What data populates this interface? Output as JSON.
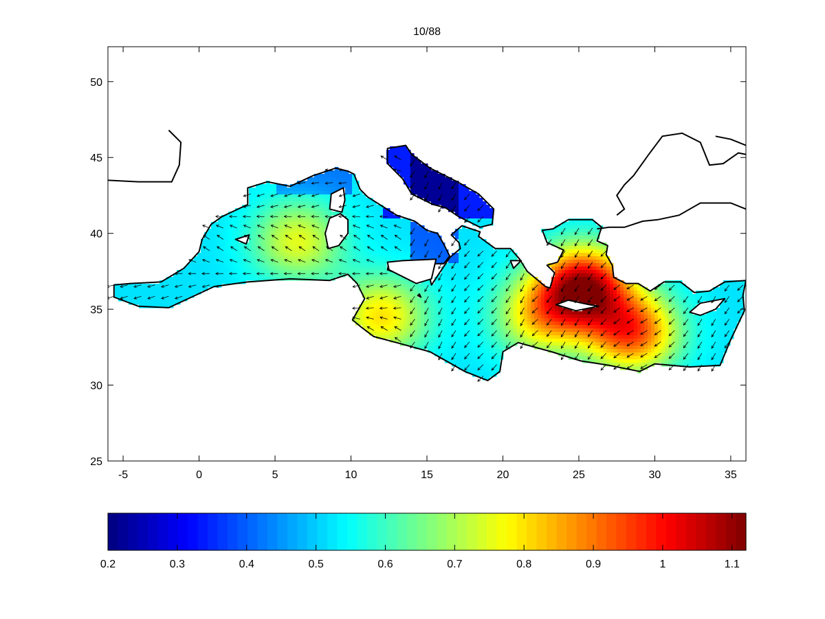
{
  "title": "10/88",
  "map": {
    "x_range": [
      -6,
      36
    ],
    "y_range": [
      25,
      52.3
    ],
    "x_ticks": [
      {
        "value": -5,
        "label": "-5"
      },
      {
        "value": 0,
        "label": "0"
      },
      {
        "value": 5,
        "label": "5"
      },
      {
        "value": 10,
        "label": "10"
      },
      {
        "value": 15,
        "label": "15"
      },
      {
        "value": 20,
        "label": "20"
      },
      {
        "value": 25,
        "label": "25"
      },
      {
        "value": 30,
        "label": "30"
      },
      {
        "value": 35,
        "label": "35"
      }
    ],
    "y_ticks": [
      {
        "value": 25,
        "label": "25"
      },
      {
        "value": 30,
        "label": "30"
      },
      {
        "value": 35,
        "label": "35"
      },
      {
        "value": 40,
        "label": "40"
      },
      {
        "value": 45,
        "label": "45"
      },
      {
        "value": 50,
        "label": "50"
      }
    ],
    "colormap": "jet",
    "field_description_hotspots": [
      {
        "lon": 25.3,
        "lat": 36.5,
        "value": 1.1
      },
      {
        "lon": 28.5,
        "lat": 33.5,
        "value": 0.97
      },
      {
        "lon": 12.0,
        "lat": 34.5,
        "value": 0.83
      },
      {
        "lon": 6.5,
        "lat": 39.5,
        "value": 0.78
      },
      {
        "lon": 22.5,
        "lat": 34.5,
        "value": 0.82
      }
    ]
  },
  "colorbar": {
    "range": [
      0.2,
      1.12
    ],
    "ticks": [
      {
        "value": 0.2,
        "label": "0.2"
      },
      {
        "value": 0.3,
        "label": "0.3"
      },
      {
        "value": 0.4,
        "label": "0.4"
      },
      {
        "value": 0.5,
        "label": "0.5"
      },
      {
        "value": 0.6,
        "label": "0.6"
      },
      {
        "value": 0.7,
        "label": "0.7"
      },
      {
        "value": 0.8,
        "label": "0.8"
      },
      {
        "value": 0.9,
        "label": "0.9"
      },
      {
        "value": 1.0,
        "label": "1"
      },
      {
        "value": 1.1,
        "label": "1.1"
      }
    ]
  }
}
